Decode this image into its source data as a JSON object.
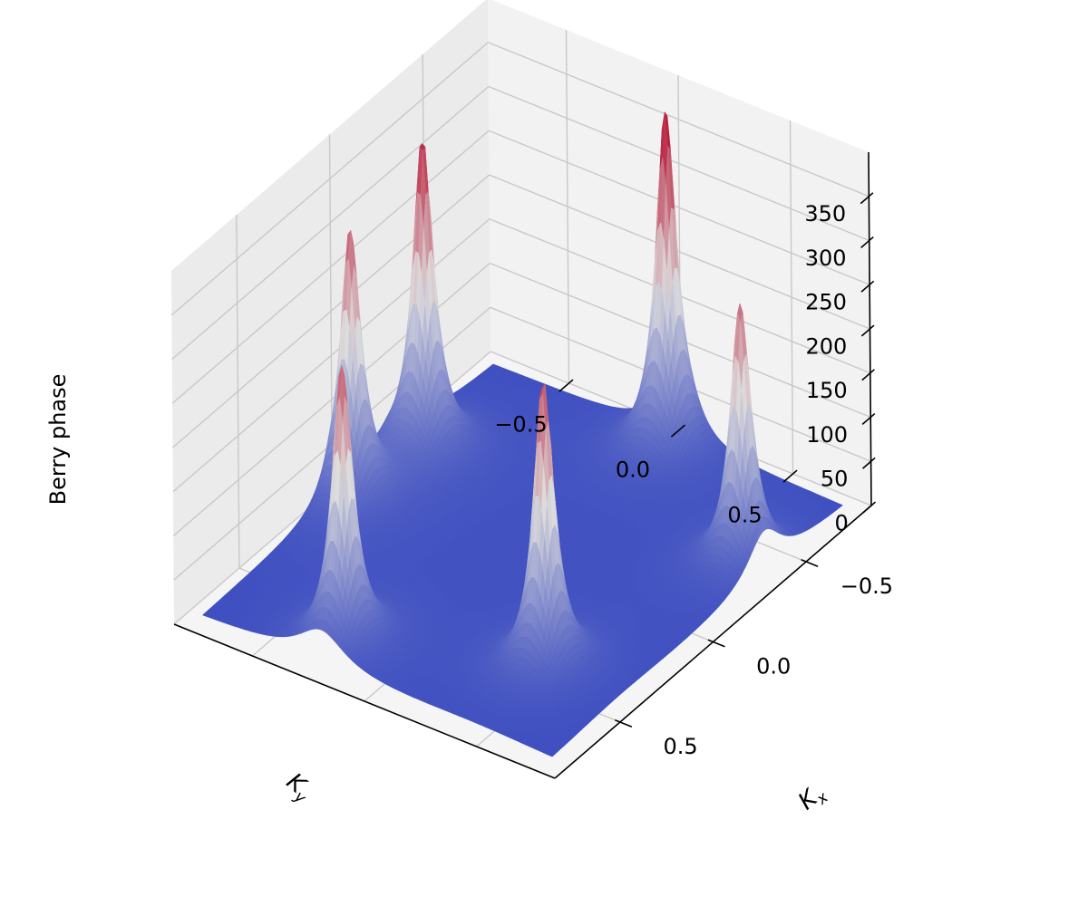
{
  "chart_data": {
    "type": "surface3d",
    "title": "",
    "xlabel": "K_x",
    "ylabel": "K_y",
    "zlabel": "Berry phase",
    "xlim": [
      -0.85,
      0.85
    ],
    "ylim": [
      -0.85,
      0.85
    ],
    "zlim": [
      0,
      400
    ],
    "x_ticks": [
      -0.5,
      0.0,
      0.5
    ],
    "y_ticks": [
      -0.5,
      0.0,
      0.5
    ],
    "z_ticks": [
      0,
      50,
      100,
      150,
      200,
      250,
      300,
      350
    ],
    "x_tick_labels": [
      "−0.5",
      "0.0",
      "0.5"
    ],
    "y_tick_labels": [
      "−0.5",
      "0.0",
      "0.5"
    ],
    "z_tick_labels": [
      "0",
      "50",
      "100",
      "150",
      "200",
      "250",
      "300",
      "350"
    ],
    "grid": true,
    "colormap": "coolwarm",
    "colormap_stops": [
      "#3b4cc0",
      "#dddcdc",
      "#b40426"
    ],
    "surface_base_color": "#3b4cc0",
    "peaks": [
      {
        "kx": -0.72,
        "ky": 0.05,
        "height": 390
      },
      {
        "kx": -0.28,
        "ky": -0.67,
        "height": 360
      },
      {
        "kx": -0.36,
        "ky": 0.68,
        "height": 300
      },
      {
        "kx": 0.05,
        "ky": -0.72,
        "height": 310
      },
      {
        "kx": 0.66,
        "ky": -0.25,
        "height": 320
      },
      {
        "kx": 0.42,
        "ky": 0.45,
        "height": 330
      }
    ]
  }
}
